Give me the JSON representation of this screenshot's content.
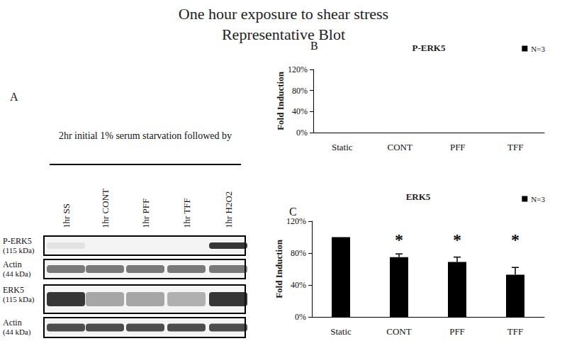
{
  "title": [
    "One hour exposure to shear stress",
    "Representative Blot"
  ],
  "blot": {
    "panel": "A",
    "header": "2hr initial 1% serum starvation followed by",
    "lanes": [
      "1hr SS",
      "1hr CONT",
      "1hr PFF",
      "1hr TFF",
      "1hr H2O2"
    ],
    "rows": [
      {
        "label": "P-ERK5",
        "size": "(115 kDa)"
      },
      {
        "label": "Actin",
        "size": "(44 kDa)"
      },
      {
        "label": "ERK5",
        "size": "(115 kDa)"
      },
      {
        "label": "Actin",
        "size": "(44 kDa)"
      }
    ]
  },
  "chart_data": [
    {
      "panel": "B",
      "type": "bar",
      "title": "P-ERK5",
      "ylabel": "Fold Induction",
      "categories": [
        "Static",
        "CONT",
        "PFF",
        "TFF"
      ],
      "series": [
        {
          "name": "N=3",
          "color": "#000000",
          "values": [
            null,
            null,
            null,
            null
          ]
        }
      ],
      "ylim": [
        0,
        120
      ],
      "yticks": [
        {
          "value": 0,
          "label": "0%"
        },
        {
          "value": 40,
          "label": "40%"
        },
        {
          "value": 80,
          "label": "80%"
        },
        {
          "value": 120,
          "label": "120%"
        }
      ],
      "grid": false,
      "legend": "upper right"
    },
    {
      "panel": "C",
      "type": "bar",
      "title": "ERK5",
      "ylabel": "Fold Induction",
      "categories": [
        "Static",
        "CONT",
        "PFF",
        "TFF"
      ],
      "series": [
        {
          "name": "N=3",
          "color": "#000000",
          "values": [
            100,
            75,
            69,
            53
          ],
          "errors": [
            null,
            4,
            6,
            9
          ]
        }
      ],
      "significance": [
        null,
        "*",
        "*",
        "*"
      ],
      "ylim": [
        0,
        120
      ],
      "yticks": [
        {
          "value": 0,
          "label": "0%"
        },
        {
          "value": 40,
          "label": "40%"
        },
        {
          "value": 80,
          "label": "80%"
        },
        {
          "value": 120,
          "label": "120%"
        }
      ],
      "grid": false,
      "legend": "upper right"
    }
  ]
}
